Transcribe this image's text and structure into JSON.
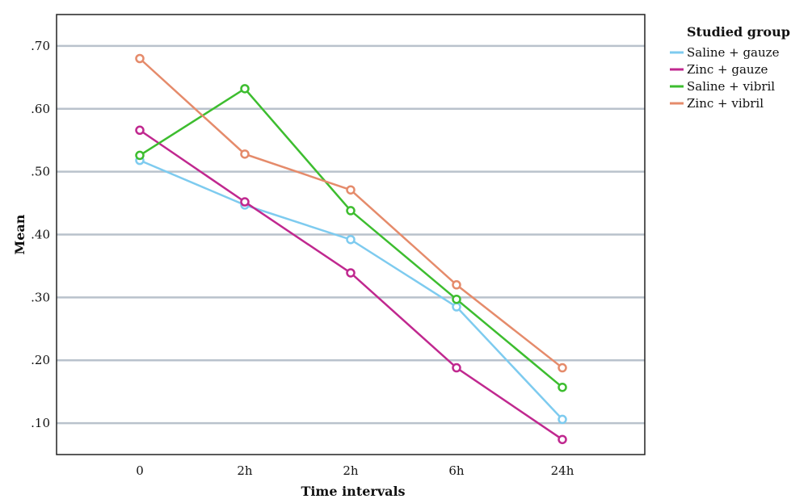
{
  "chart_data": {
    "type": "line",
    "title": "",
    "xlabel": "Time intervals",
    "ylabel": "Mean",
    "categories": [
      "0",
      "2h",
      "2h",
      "6h",
      "24h"
    ],
    "ylim": [
      0.05,
      0.75
    ],
    "yticks": [
      0.1,
      0.2,
      0.3,
      0.4,
      0.5,
      0.6,
      0.7
    ],
    "ytick_labels": [
      ".10",
      ".20",
      ".30",
      ".40",
      ".50",
      ".60",
      ".70"
    ],
    "grid": true,
    "legend_title": "Studied group",
    "legend_position": "top-right-outside",
    "series": [
      {
        "name": "Saline + gauze",
        "color": "#7ecbef",
        "values": [
          0.518,
          0.447,
          0.392,
          0.285,
          0.106
        ]
      },
      {
        "name": "Zinc + gauze",
        "color": "#c0288f",
        "values": [
          0.566,
          0.452,
          0.339,
          0.188,
          0.074
        ]
      },
      {
        "name": "Saline + vibril",
        "color": "#3dbd2f",
        "values": [
          0.526,
          0.632,
          0.438,
          0.297,
          0.157
        ]
      },
      {
        "name": "Zinc + vibril",
        "color": "#e58b6b",
        "values": [
          0.68,
          0.528,
          0.471,
          0.32,
          0.188
        ]
      }
    ]
  }
}
